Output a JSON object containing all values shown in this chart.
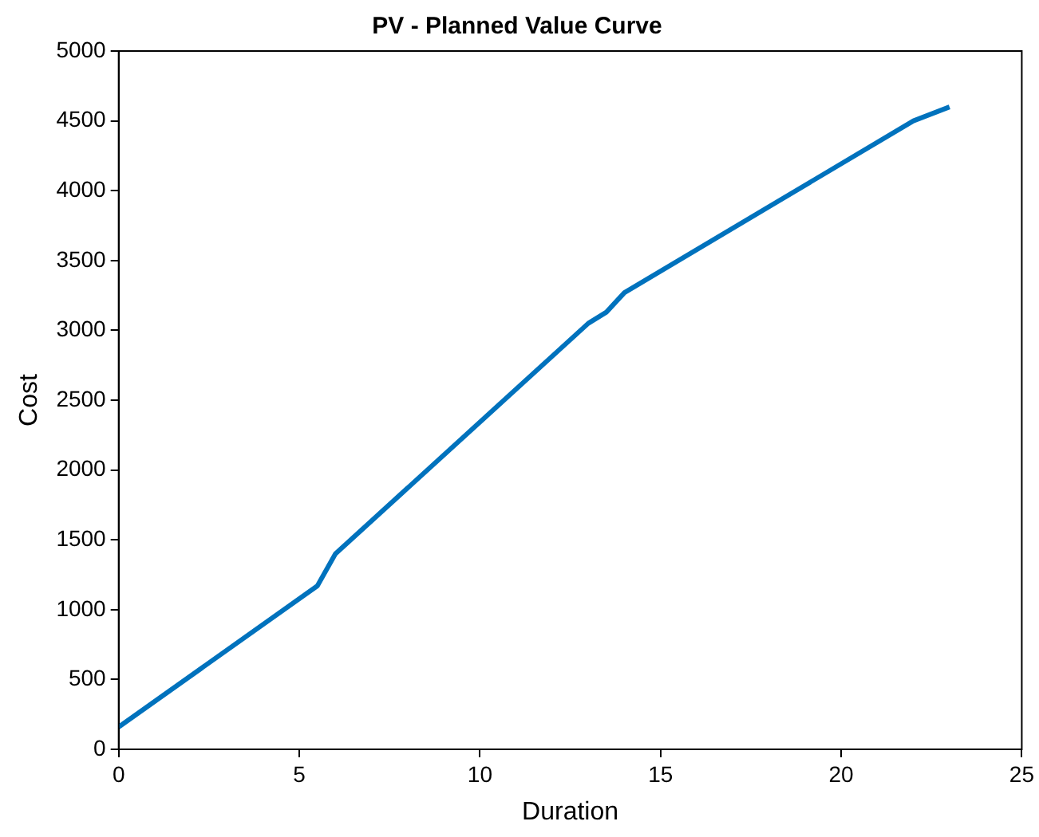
{
  "chart_data": {
    "type": "line",
    "title": "PV - Planned Value Curve",
    "xlabel": "Duration",
    "ylabel": "Cost",
    "series": [
      {
        "color": "#0072bd",
        "x": [
          0,
          5.5,
          6,
          13,
          13.5,
          14,
          22,
          23
        ],
        "values": [
          160,
          1170,
          1400,
          3050,
          3130,
          3270,
          4500,
          4600
        ]
      }
    ],
    "xlim": [
      0,
      25
    ],
    "xticks": [
      0,
      5,
      10,
      15,
      20,
      25
    ],
    "ylim": [
      0,
      5000
    ],
    "yticks": [
      0,
      500,
      1000,
      1500,
      2000,
      2500,
      3000,
      3500,
      4000,
      4500,
      5000
    ],
    "grid": false,
    "legend": false,
    "marker": "none",
    "line_style": "solid"
  }
}
